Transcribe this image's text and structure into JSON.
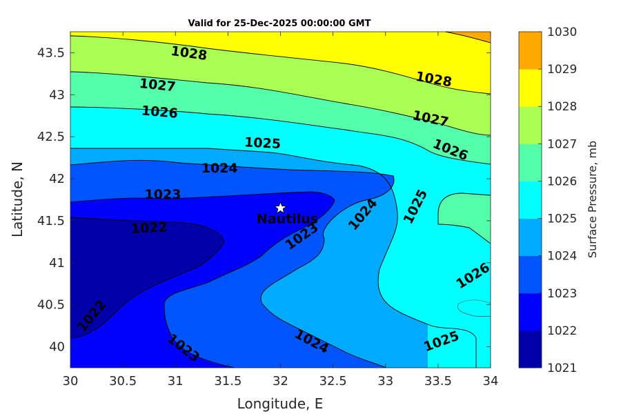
{
  "chart_data": {
    "type": "contour",
    "title": "Valid for 25-Dec-2025 00:00:00 GMT",
    "xlabel": "Longitude, E",
    "ylabel": "Latitude, N",
    "xlim": [
      30,
      34
    ],
    "ylim": [
      39.75,
      43.75
    ],
    "xticks": [
      30,
      30.5,
      31,
      31.5,
      32,
      32.5,
      33,
      33.5,
      34
    ],
    "xtick_labels": [
      "30",
      "30.5",
      "31",
      "31.5",
      "32",
      "32.5",
      "33",
      "33.5",
      "34"
    ],
    "yticks": [
      40,
      40.5,
      41,
      41.5,
      42,
      42.5,
      43,
      43.5
    ],
    "ytick_labels": [
      "40",
      "40.5",
      "41",
      "41.5",
      "42",
      "42.5",
      "43",
      "43.5"
    ],
    "colorbar": {
      "label": "Surface Pressure, mb",
      "min": 1021,
      "max": 1030,
      "levels": [
        1021,
        1022,
        1023,
        1024,
        1025,
        1026,
        1027,
        1028,
        1029,
        1030
      ],
      "tick_labels": [
        "1021",
        "1022",
        "1023",
        "1024",
        "1025",
        "1026",
        "1027",
        "1028",
        "1029",
        "1030"
      ],
      "colors": [
        "#0000aa",
        "#0000ff",
        "#0055ff",
        "#00aaff",
        "#00ffff",
        "#55ffaa",
        "#aaff55",
        "#ffff00",
        "#ffaa00",
        "#ff5500"
      ]
    },
    "marker": {
      "label": "Nautilus",
      "lon": 32.0,
      "lat": 41.65,
      "symbol": "star"
    },
    "contour_labels": [
      {
        "text": "1028",
        "lon": 31.13,
        "lat": 43.5,
        "angle": 8
      },
      {
        "text": "1027",
        "lon": 30.83,
        "lat": 43.12,
        "angle": 6
      },
      {
        "text": "1026",
        "lon": 30.85,
        "lat": 42.8,
        "angle": 5
      },
      {
        "text": "1025",
        "lon": 31.83,
        "lat": 42.43,
        "angle": 3
      },
      {
        "text": "1024",
        "lon": 31.42,
        "lat": 42.13,
        "angle": 0
      },
      {
        "text": "1023",
        "lon": 30.88,
        "lat": 41.82,
        "angle": 0
      },
      {
        "text": "1022",
        "lon": 30.75,
        "lat": 41.42,
        "angle": -3
      },
      {
        "text": "1022",
        "lon": 30.2,
        "lat": 40.37,
        "angle": -50
      },
      {
        "text": "1023",
        "lon": 31.08,
        "lat": 39.99,
        "angle": 38
      },
      {
        "text": "1023",
        "lon": 32.2,
        "lat": 41.32,
        "angle": -35
      },
      {
        "text": "1024",
        "lon": 32.78,
        "lat": 41.58,
        "angle": -50
      },
      {
        "text": "1024",
        "lon": 32.3,
        "lat": 40.07,
        "angle": 28
      },
      {
        "text": "1025",
        "lon": 33.28,
        "lat": 41.67,
        "angle": -63
      },
      {
        "text": "1025",
        "lon": 33.53,
        "lat": 40.07,
        "angle": -20
      },
      {
        "text": "1026",
        "lon": 33.83,
        "lat": 40.85,
        "angle": -32
      },
      {
        "text": "1026",
        "lon": 33.62,
        "lat": 42.35,
        "angle": 22
      },
      {
        "text": "1027",
        "lon": 33.43,
        "lat": 42.72,
        "angle": 12
      },
      {
        "text": "1028",
        "lon": 33.46,
        "lat": 43.19,
        "angle": 10
      }
    ]
  }
}
